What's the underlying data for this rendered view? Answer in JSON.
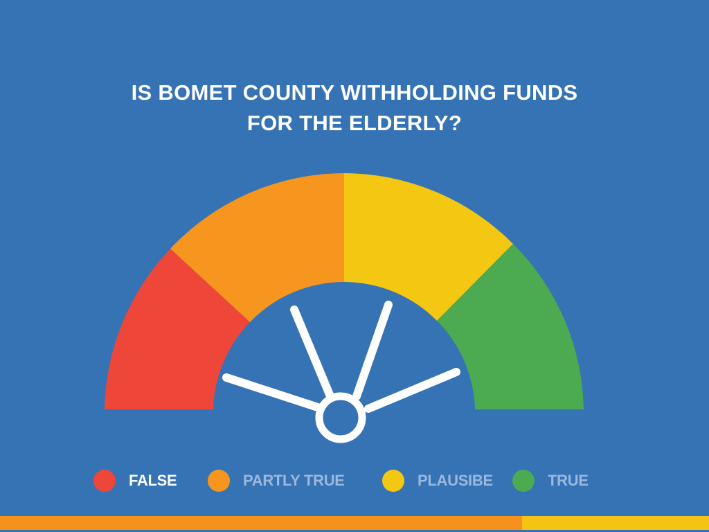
{
  "title": {
    "line1": "IS BOMET COUNTY WITHHOLDING FUNDS",
    "line2": "FOR THE ELDERLY?"
  },
  "colors": {
    "background": "#3573b5",
    "false": "#ee473a",
    "partly_true": "#f6961e",
    "plausible": "#f4c713",
    "true": "#4caa50",
    "needle": "#ffffff",
    "label_active": "#ffffff",
    "label_inactive": "#9bb8dc",
    "bar_orange": "#f7911e",
    "bar_yellow": "#f5c314"
  },
  "meter": {
    "segments": [
      {
        "name": "false",
        "color_key": "false"
      },
      {
        "name": "partly-true",
        "color_key": "partly_true"
      },
      {
        "name": "plausible",
        "color_key": "plausible"
      },
      {
        "name": "true",
        "color_key": "true"
      }
    ],
    "needle_icon": "gauge-needles-icon"
  },
  "legend": [
    {
      "label": "FALSE",
      "color_key": "false",
      "active": true
    },
    {
      "label": "PARTLY TRUE",
      "color_key": "partly_true",
      "active": false
    },
    {
      "label": "PLAUSIBE",
      "color_key": "plausible",
      "active": false
    },
    {
      "label": "TRUE",
      "color_key": "true",
      "active": false
    }
  ]
}
